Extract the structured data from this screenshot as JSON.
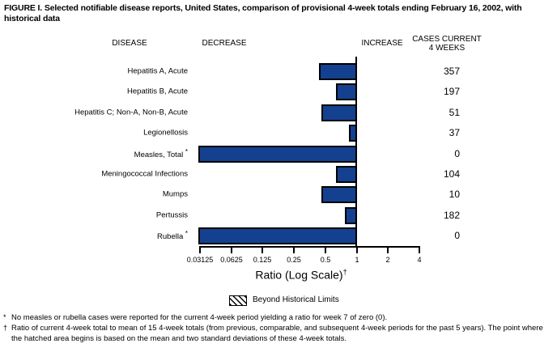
{
  "figure_title": "FIGURE I. Selected notifiable disease reports, United States, comparison of provisional 4-week totals ending February 16, 2002, with historical data",
  "column_headers": {
    "disease": "DISEASE",
    "decrease": "DECREASE",
    "increase": "INCREASE",
    "cases_line1": "CASES CURRENT",
    "cases_line2": "4 WEEKS"
  },
  "chart_data": {
    "type": "bar",
    "orientation": "horizontal",
    "scale": "log",
    "baseline_ratio": 1,
    "xlim": [
      0.03125,
      4
    ],
    "x_tick_labels": [
      "0.03125",
      "0.0625",
      "0.125",
      "0.25",
      "0.5",
      "1",
      "2",
      "4"
    ],
    "x_tick_values": [
      0.03125,
      0.0625,
      0.125,
      0.25,
      0.5,
      1,
      2,
      4
    ],
    "xlabel": "Ratio (Log Scale)",
    "xlabel_footnote_marker": "†",
    "rows": [
      {
        "disease": "Hepatitis A, Acute",
        "footnote_marker": "",
        "ratio": 0.45,
        "cases_current_4_weeks": 357
      },
      {
        "disease": "Hepatitis B, Acute",
        "footnote_marker": "",
        "ratio": 0.65,
        "cases_current_4_weeks": 197
      },
      {
        "disease": "Hepatitis C; Non-A, Non-B, Acute",
        "footnote_marker": "",
        "ratio": 0.47,
        "cases_current_4_weeks": 51
      },
      {
        "disease": "Legionellosis",
        "footnote_marker": "",
        "ratio": 0.86,
        "cases_current_4_weeks": 37
      },
      {
        "disease": "Measles, Total",
        "footnote_marker": "*",
        "ratio": 0,
        "cases_current_4_weeks": 0
      },
      {
        "disease": "Meningococcal Infections",
        "footnote_marker": "",
        "ratio": 0.65,
        "cases_current_4_weeks": 104
      },
      {
        "disease": "Mumps",
        "footnote_marker": "",
        "ratio": 0.47,
        "cases_current_4_weeks": 10
      },
      {
        "disease": "Pertussis",
        "footnote_marker": "",
        "ratio": 0.79,
        "cases_current_4_weeks": 182
      },
      {
        "disease": "Rubella",
        "footnote_marker": "*",
        "ratio": 0,
        "cases_current_4_weeks": 0
      }
    ],
    "legend": {
      "swatch": "hatched-box",
      "label": "Beyond Historical Limits"
    },
    "bar_color": "#14418f"
  },
  "footnotes": [
    {
      "marker": "*",
      "text": "No measles or rubella cases were reported for the current 4-week period yielding a ratio for week 7 of zero (0)."
    },
    {
      "marker": "†",
      "text": "Ratio of current 4-week total to mean of 15 4-week totals (from previous, comparable, and subsequent 4-week periods for the past 5 years). The point where the hatched area begins is based on the mean and two standard deviations of these 4-week totals."
    }
  ],
  "colors": {
    "bar": "#14418f",
    "axis": "#000000",
    "text": "#000000",
    "background": "#ffffff"
  }
}
